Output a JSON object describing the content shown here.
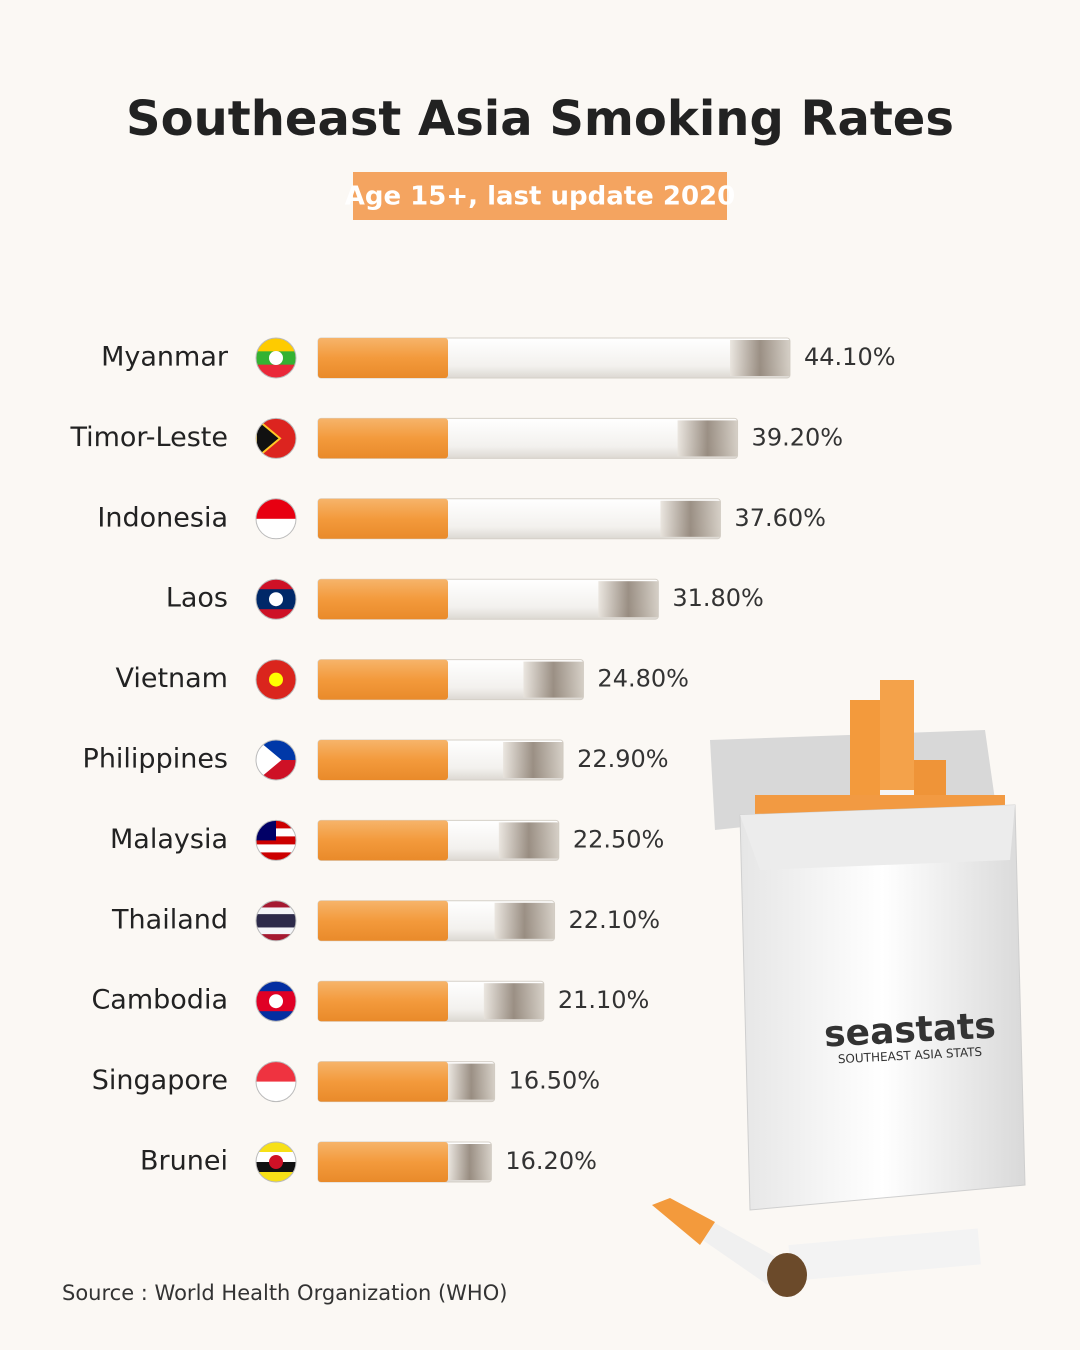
{
  "chart_data": {
    "type": "bar",
    "orientation": "horizontal",
    "title": "Southeast Asia Smoking Rates",
    "subtitle": "Age 15+, last update 2020",
    "categories": [
      "Myanmar",
      "Timor-Leste",
      "Indonesia",
      "Laos",
      "Vietnam",
      "Philippines",
      "Malaysia",
      "Thailand",
      "Cambodia",
      "Singapore",
      "Brunei"
    ],
    "values": [
      44.1,
      39.2,
      37.6,
      31.8,
      24.8,
      22.9,
      22.5,
      22.1,
      21.1,
      16.5,
      16.2
    ],
    "value_labels": [
      "44.10%",
      "39.20%",
      "37.60%",
      "31.80%",
      "24.80%",
      "22.90%",
      "22.50%",
      "22.10%",
      "21.10%",
      "16.50%",
      "16.20%"
    ],
    "color": "#f7f5f2",
    "source": "Source : World Health Organization (WHO)"
  },
  "logo": {
    "name": "seastats",
    "tagline": "SOUTHEAST ASIA STATS"
  }
}
